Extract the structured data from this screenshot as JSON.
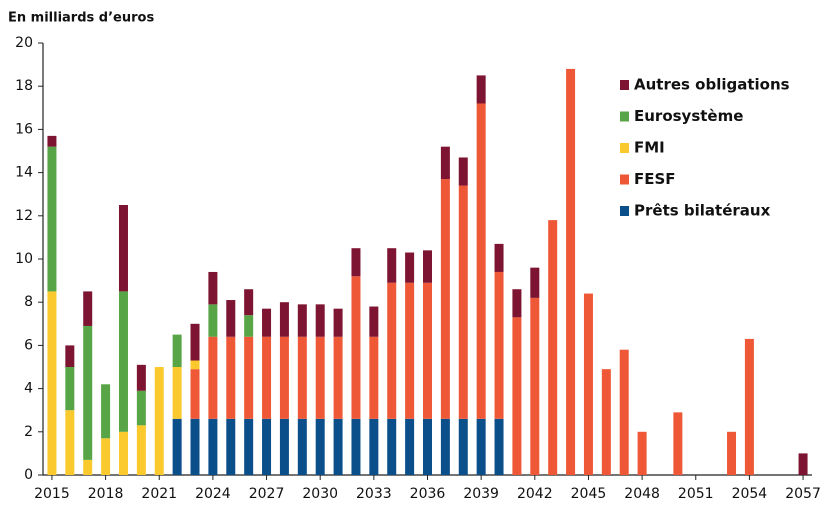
{
  "chart_data": {
    "type": "stacked-bar",
    "title": "En milliards d’euros",
    "x": [
      2015,
      2016,
      2017,
      2018,
      2019,
      2020,
      2021,
      2022,
      2023,
      2024,
      2025,
      2026,
      2027,
      2028,
      2029,
      2030,
      2031,
      2032,
      2033,
      2034,
      2035,
      2036,
      2037,
      2038,
      2039,
      2040,
      2041,
      2042,
      2043,
      2044,
      2045,
      2046,
      2047,
      2048,
      2049,
      2050,
      2051,
      2052,
      2053,
      2054,
      2055,
      2056,
      2057
    ],
    "xlim": [
      2014.5,
      2057.5
    ],
    "xticks": [
      2015,
      2018,
      2021,
      2024,
      2027,
      2030,
      2033,
      2036,
      2039,
      2042,
      2045,
      2048,
      2051,
      2054,
      2057
    ],
    "ylim": [
      0,
      20
    ],
    "yticks": [
      0,
      2,
      4,
      6,
      8,
      10,
      12,
      14,
      16,
      18,
      20
    ],
    "grid": false,
    "legend": "upper-right",
    "series": [
      {
        "name": "Prêts bilatéraux",
        "color": "#0b4f8a",
        "values": [
          0,
          0,
          0,
          0,
          0,
          0,
          0,
          2.6,
          2.6,
          2.6,
          2.6,
          2.6,
          2.6,
          2.6,
          2.6,
          2.6,
          2.6,
          2.6,
          2.6,
          2.6,
          2.6,
          2.6,
          2.6,
          2.6,
          2.6,
          2.6,
          0,
          0,
          0,
          0,
          0,
          0,
          0,
          0,
          0,
          0,
          0,
          0,
          0,
          0,
          0,
          0,
          0
        ]
      },
      {
        "name": "FESF",
        "color": "#ef5836",
        "values": [
          0,
          0,
          0,
          0,
          0,
          0,
          0,
          0,
          2.3,
          3.8,
          3.8,
          3.8,
          3.8,
          3.8,
          3.8,
          3.8,
          3.8,
          6.6,
          3.8,
          6.3,
          6.3,
          6.3,
          11.1,
          10.8,
          14.6,
          6.8,
          7.3,
          8.2,
          11.8,
          18.8,
          8.4,
          4.9,
          5.8,
          2.0,
          0,
          2.9,
          0,
          0,
          2.0,
          6.3,
          0,
          0,
          0
        ]
      },
      {
        "name": "FMI",
        "color": "#f9c92e",
        "values": [
          8.5,
          3.0,
          0.7,
          1.7,
          2.0,
          2.3,
          5.0,
          2.4,
          0.4,
          0,
          0,
          0,
          0,
          0,
          0,
          0,
          0,
          0,
          0,
          0,
          0,
          0,
          0,
          0,
          0,
          0,
          0,
          0,
          0,
          0,
          0,
          0,
          0,
          0,
          0,
          0,
          0,
          0,
          0,
          0,
          0,
          0,
          0
        ]
      },
      {
        "name": "Eurosystème",
        "color": "#58a547",
        "values": [
          6.7,
          2.0,
          6.2,
          2.5,
          6.5,
          1.6,
          0,
          1.5,
          0,
          1.5,
          0,
          1.0,
          0,
          0,
          0,
          0,
          0,
          0,
          0,
          0,
          0,
          0,
          0,
          0,
          0,
          0,
          0,
          0,
          0,
          0,
          0,
          0,
          0,
          0,
          0,
          0,
          0,
          0,
          0,
          0,
          0,
          0,
          0
        ]
      },
      {
        "name": "Autres obligations",
        "color": "#7d1431",
        "values": [
          0.5,
          1.0,
          1.6,
          0,
          4.0,
          1.2,
          0,
          0,
          1.7,
          1.5,
          1.7,
          1.2,
          1.3,
          1.6,
          1.5,
          1.5,
          1.3,
          1.3,
          1.4,
          1.6,
          1.4,
          1.5,
          1.5,
          1.3,
          1.3,
          1.3,
          1.3,
          1.4,
          0,
          0,
          0,
          0,
          0,
          0,
          0,
          0,
          0,
          0,
          0,
          0,
          0,
          0,
          1.0
        ]
      }
    ]
  }
}
